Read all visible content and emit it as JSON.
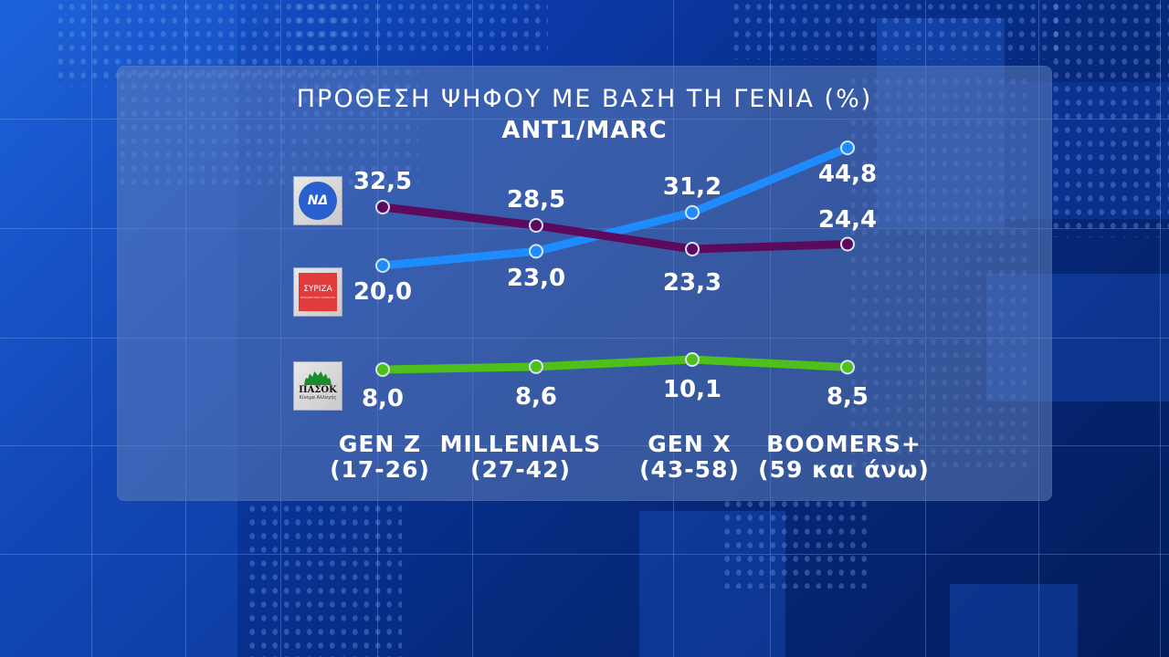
{
  "header": {
    "title": "ΠΡΟΘΕΣΗ ΨΗΦΟΥ ΜΕ ΒΑΣΗ ΤΗ ΓΕΝΙΑ (%)",
    "source": "ANT1/MARC"
  },
  "parties": [
    {
      "key": "nd",
      "logo_text": "ΝΔ",
      "color": "#1e8cff"
    },
    {
      "key": "syriza",
      "logo_text": "ΣΥΡΙΖΑ",
      "logo_subtext": "ΠΡΟΟΔΕΥΤΙΚΗ ΣΥΜΜΑΧΙΑ",
      "color": "#5c0a5e"
    },
    {
      "key": "pasok",
      "logo_text": "ΠΑΣΟΚ",
      "logo_subtext": "Κίνημα Αλλαγής",
      "color": "#4fbf1a"
    }
  ],
  "categories": [
    {
      "name": "GEN Z",
      "range": "(17-26)"
    },
    {
      "name": "MILLENIALS",
      "range": "(27-42)"
    },
    {
      "name": "GEN X",
      "range": "(43-58)"
    },
    {
      "name": "BOOMERS+",
      "range": "(59 και άνω)"
    }
  ],
  "labels": {
    "nd": [
      "20,0",
      "23,0",
      "31,2",
      "44,8"
    ],
    "syriza": [
      "32,5",
      "28,5",
      "23,3",
      "24,4"
    ],
    "pasok": [
      "8,0",
      "8,6",
      "10,1",
      "8,5"
    ]
  },
  "chart_data": {
    "type": "line",
    "title": "ΠΡΟΘΕΣΗ ΨΗΦΟΥ ΜΕ ΒΑΣΗ ΤΗ ΓΕΝΙΑ (%)",
    "subtitle": "ANT1/MARC",
    "xlabel": "",
    "ylabel": "%",
    "categories": [
      "GEN Z (17-26)",
      "MILLENIALS (27-42)",
      "GEN X (43-58)",
      "BOOMERS+ (59 και άνω)"
    ],
    "series": [
      {
        "name": "ΝΔ",
        "color": "#1e8cff",
        "values": [
          20.0,
          23.0,
          31.2,
          44.8
        ]
      },
      {
        "name": "ΣΥΡΙΖΑ",
        "color": "#5c0a5e",
        "values": [
          32.5,
          28.5,
          23.3,
          24.4
        ]
      },
      {
        "name": "ΠΑΣΟΚ",
        "color": "#4fbf1a",
        "values": [
          8.0,
          8.6,
          10.1,
          8.5
        ]
      }
    ],
    "grid": false,
    "legend": "party logos on left",
    "data_labels": true
  }
}
